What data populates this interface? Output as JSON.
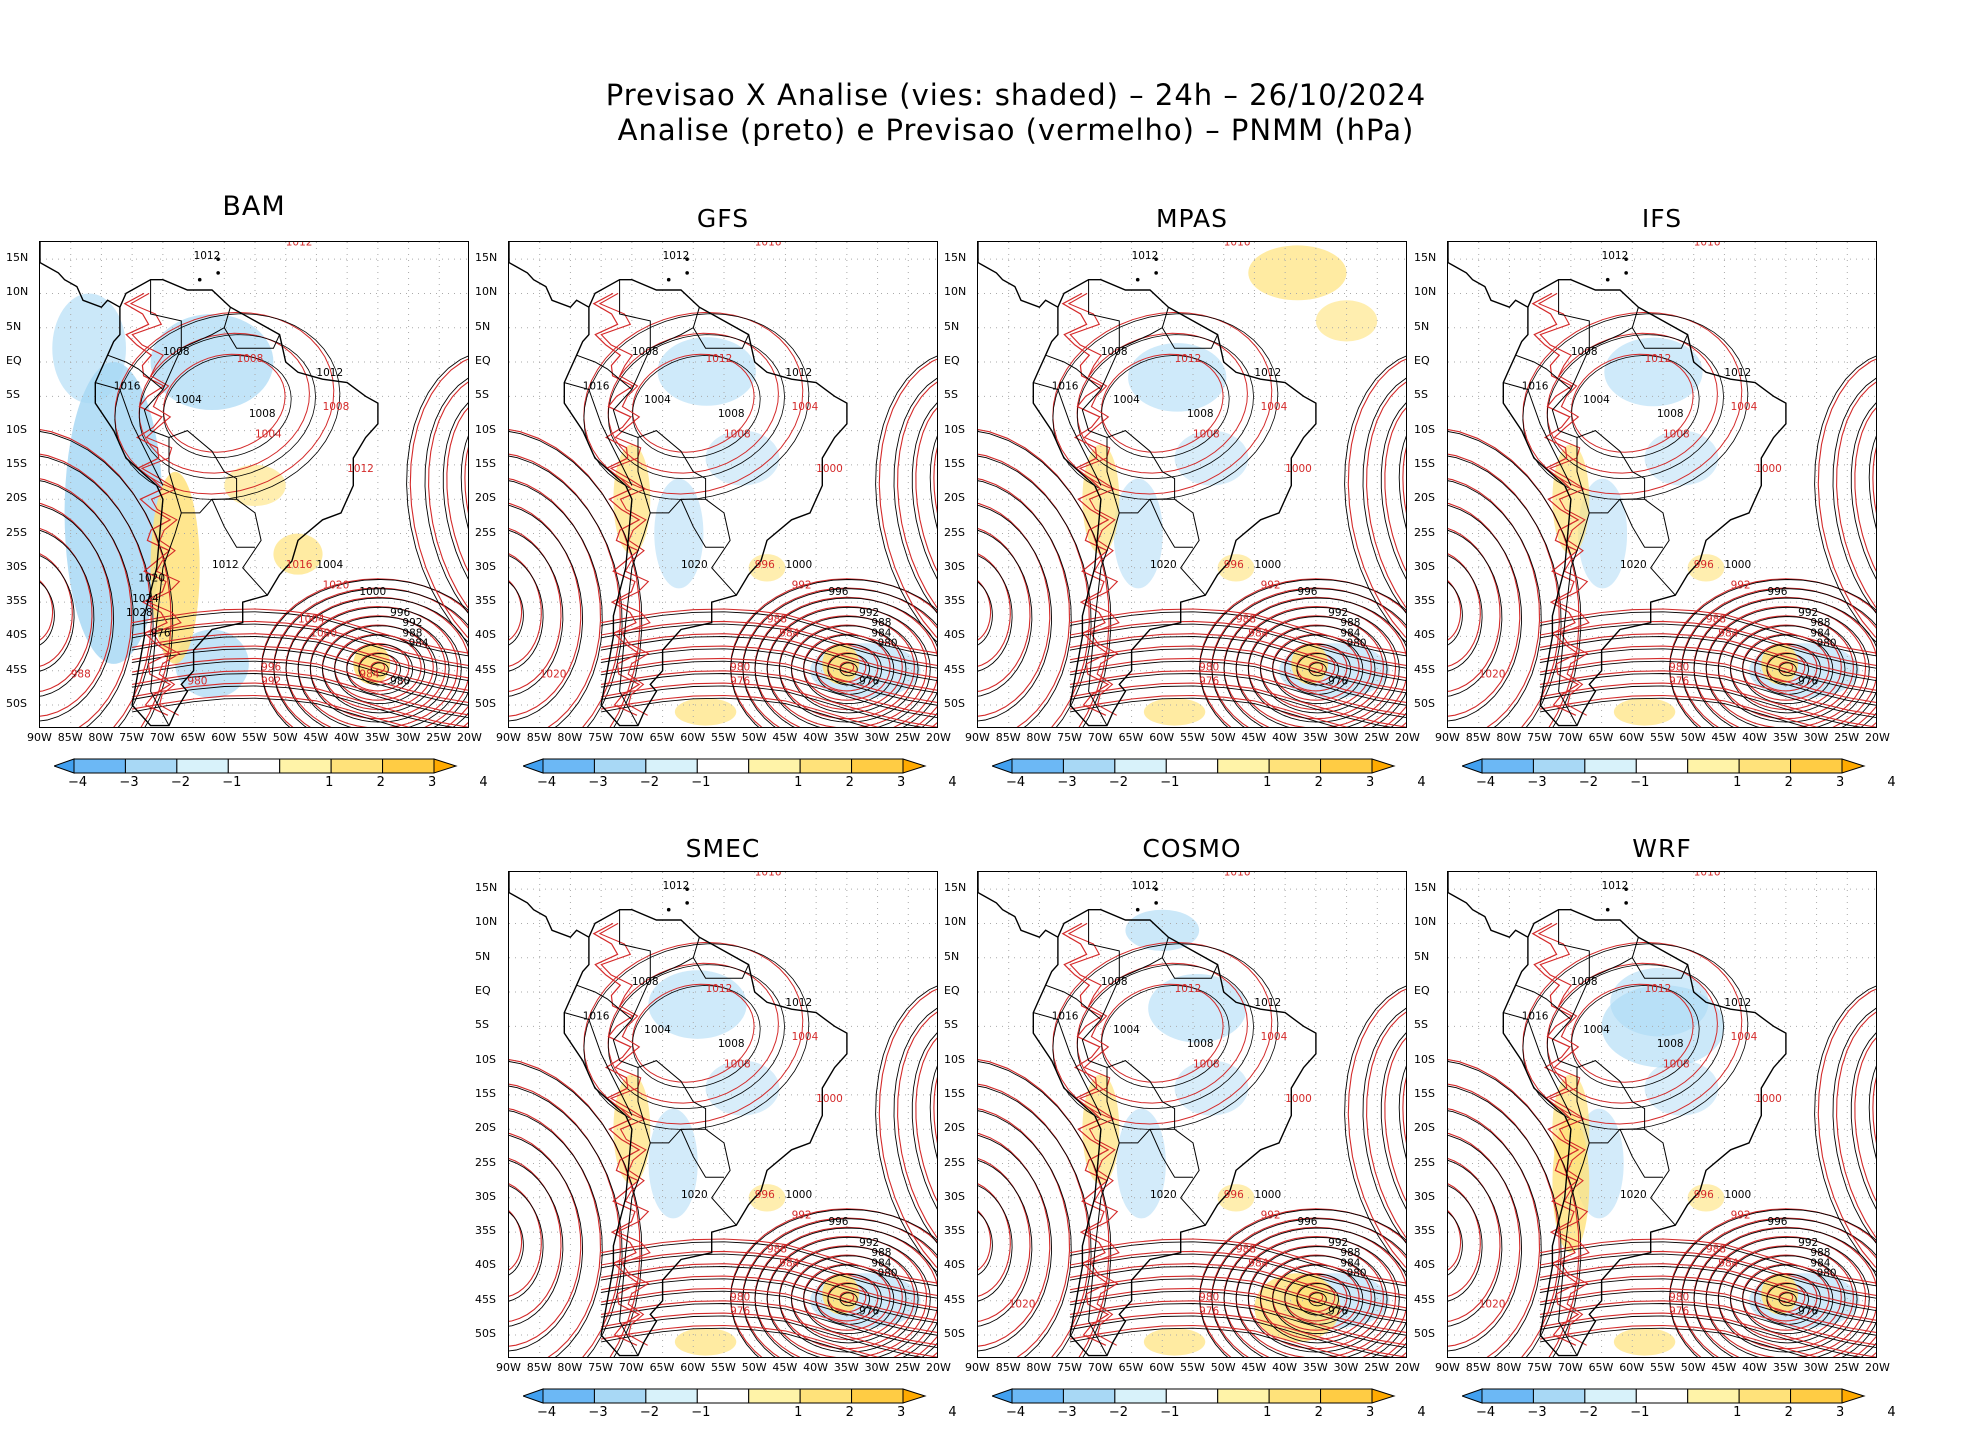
{
  "header": {
    "title_line1": "Previsao X Analise (vies: shaded) – 24h – 26/10/2024",
    "title_line2": "Analise (preto) e Previsao (vermelho) – PNMM (hPa)"
  },
  "lat_labels": [
    "15N",
    "10N",
    "5N",
    "EQ",
    "5S",
    "10S",
    "15S",
    "20S",
    "25S",
    "30S",
    "35S",
    "40S",
    "45S",
    "50S"
  ],
  "lon_labels": [
    "90W",
    "85W",
    "80W",
    "75W",
    "70W",
    "65W",
    "60W",
    "55W",
    "50W",
    "45W",
    "40W",
    "35W",
    "30W",
    "25W",
    "20W"
  ],
  "colorbar": {
    "ticks": [
      "−4",
      "−3",
      "−2",
      "−1",
      "1",
      "2",
      "3",
      "4"
    ],
    "colors": [
      "#41a0f0",
      "#6cb8f5",
      "#a8d8f5",
      "#d8f2fa",
      "#ffffff",
      "#fff3a8",
      "#ffe27a",
      "#ffcc44",
      "#ffaa00"
    ]
  },
  "colors": {
    "analysis": "#000000",
    "forecast": "#d42a2a",
    "negative_bias": "#a8d8f5",
    "positive_bias": "#ffe27a"
  },
  "panels": [
    {
      "model": "BAM",
      "labels_black": [
        "1012",
        "1008",
        "1004",
        "1008",
        "1012",
        "1016",
        "1012",
        "1008",
        "1004",
        "1000",
        "996",
        "992",
        "988",
        "984",
        "980",
        "976",
        "1020",
        "1024",
        "1028"
      ],
      "labels_red": [
        "1012",
        "1008",
        "1004",
        "1008",
        "1012",
        "1016",
        "1020",
        "1004",
        "1000",
        "996",
        "992",
        "988",
        "984",
        "980"
      ]
    },
    {
      "model": "GFS",
      "labels_black": [
        "1012",
        "1008",
        "1004",
        "1008",
        "1012",
        "1016",
        "1020",
        "1004",
        "1000",
        "996",
        "992",
        "988",
        "984",
        "980",
        "976"
      ],
      "labels_red": [
        "1016",
        "1012",
        "1008",
        "1004",
        "1000",
        "996",
        "992",
        "988",
        "984",
        "980",
        "976",
        "1020"
      ]
    },
    {
      "model": "MPAS",
      "labels_black": [
        "1012",
        "1008",
        "1004",
        "1008",
        "1012",
        "1016",
        "1020",
        "1004",
        "1000",
        "996",
        "992",
        "988",
        "984",
        "980",
        "976"
      ],
      "labels_red": [
        "1016",
        "1012",
        "1008",
        "1004",
        "1000",
        "996",
        "992",
        "988",
        "984",
        "980",
        "976"
      ]
    },
    {
      "model": "IFS",
      "labels_black": [
        "1012",
        "1008",
        "1004",
        "1008",
        "1012",
        "1016",
        "1020",
        "1004",
        "1000",
        "996",
        "992",
        "988",
        "984",
        "980",
        "976"
      ],
      "labels_red": [
        "1016",
        "1012",
        "1008",
        "1004",
        "1000",
        "996",
        "992",
        "988",
        "984",
        "980",
        "976",
        "1020"
      ]
    },
    {
      "model": "SMEC",
      "labels_black": [
        "1012",
        "1008",
        "1004",
        "1008",
        "1012",
        "1016",
        "1020",
        "1004",
        "1000",
        "996",
        "992",
        "988",
        "984",
        "980",
        "976"
      ],
      "labels_red": [
        "1016",
        "1012",
        "1008",
        "1004",
        "1000",
        "996",
        "992",
        "988",
        "984",
        "980",
        "976"
      ]
    },
    {
      "model": "COSMO",
      "labels_black": [
        "1012",
        "1008",
        "1004",
        "1008",
        "1012",
        "1016",
        "1020",
        "1004",
        "1000",
        "996",
        "992",
        "988",
        "984",
        "980",
        "976"
      ],
      "labels_red": [
        "1016",
        "1012",
        "1008",
        "1004",
        "1000",
        "996",
        "992",
        "988",
        "984",
        "980",
        "976",
        "1020"
      ]
    },
    {
      "model": "WRF",
      "labels_black": [
        "1012",
        "1008",
        "1004",
        "1008",
        "1012",
        "1016",
        "1020",
        "1004",
        "1000",
        "996",
        "992",
        "988",
        "984",
        "980",
        "976"
      ],
      "labels_red": [
        "1016",
        "1012",
        "1008",
        "1004",
        "1000",
        "996",
        "992",
        "988",
        "984",
        "980",
        "976",
        "1020"
      ]
    }
  ]
}
